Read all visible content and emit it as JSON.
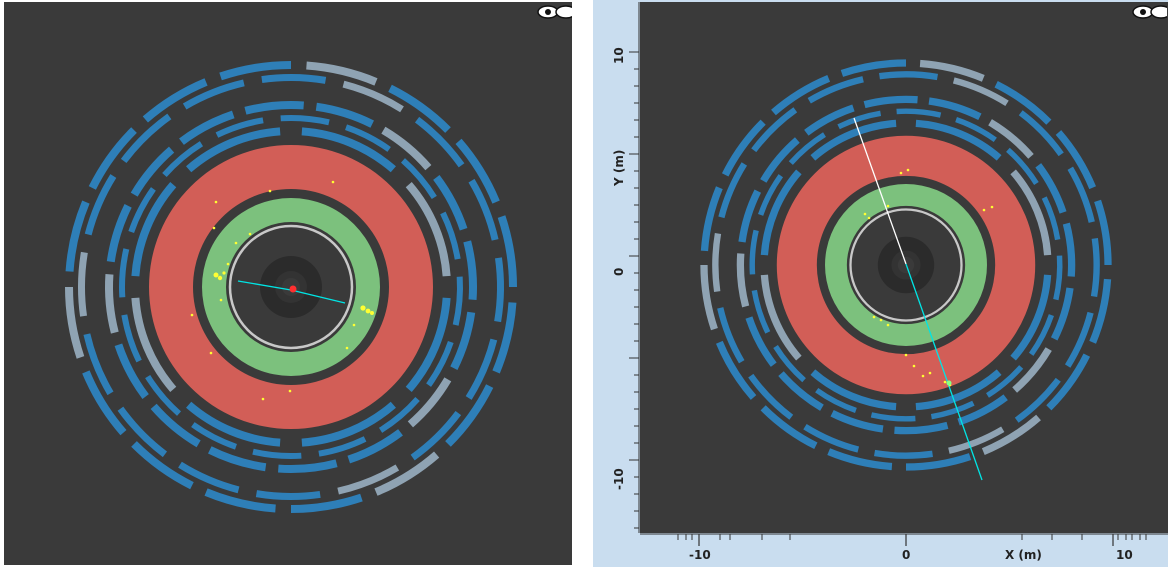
{
  "left_view": {
    "eye_icon": "eye-icon",
    "colors": {
      "background": "#3a3a3a",
      "muon_chamber": "#2e7fb8",
      "muon_chamber_grey": "#8fa3b3",
      "hadronic_calorimeter": "#d25e57",
      "em_calorimeter": "#7cc17d",
      "solenoid": "#c8c8c8",
      "inner_detector": "#2b2b2b",
      "track": "#00e5e5",
      "hits": "#ffff33",
      "vertex": "#ff3030"
    }
  },
  "right_view": {
    "eye_icon": "eye-icon",
    "x_axis_label": "X (m)",
    "y_axis_label": "Y (m)",
    "x_ticks": [
      "-10",
      "0",
      "10"
    ],
    "y_ticks": [
      "10",
      "0",
      "-10"
    ],
    "colors": {
      "frame": "#c9ddef",
      "track_outgoing": "#00e5e5",
      "track_incoming": "#ffffff"
    }
  }
}
